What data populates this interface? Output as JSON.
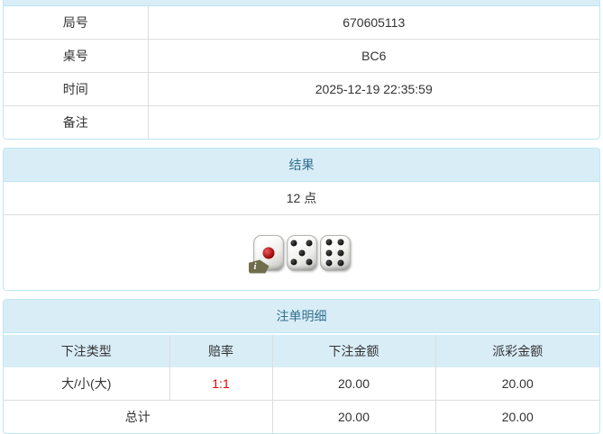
{
  "theme": {
    "heading_bg": "#d9edf7",
    "panel_border": "#bce8f1",
    "heading_text": "#31708f",
    "body_text": "#333333",
    "inner_border": "#dddddd",
    "odds_text": "#e60000"
  },
  "game_info": {
    "rows": [
      {
        "label": "局号",
        "value": "670605113"
      },
      {
        "label": "桌号",
        "value": "BC6"
      },
      {
        "label": "时间",
        "value": "2025-12-19 22:35:59"
      },
      {
        "label": "备注",
        "value": ""
      }
    ]
  },
  "result_panel": {
    "title": "结果",
    "points": "12 点",
    "dice": [
      {
        "value": 1,
        "pip_color": "red",
        "info_badge": "i"
      },
      {
        "value": 5,
        "pip_color": "black"
      },
      {
        "value": 6,
        "pip_color": "black"
      }
    ]
  },
  "bets_panel": {
    "title": "注单明细",
    "columns": [
      "下注类型",
      "赔率",
      "下注金额",
      "派彩金额"
    ],
    "rows": [
      {
        "bet_type": "大/小(大)",
        "odds": "1:1",
        "bet_amount": "20.00",
        "payout": "20.00"
      }
    ],
    "total": {
      "label": "总计",
      "bet_amount": "20.00",
      "payout": "20.00"
    }
  }
}
